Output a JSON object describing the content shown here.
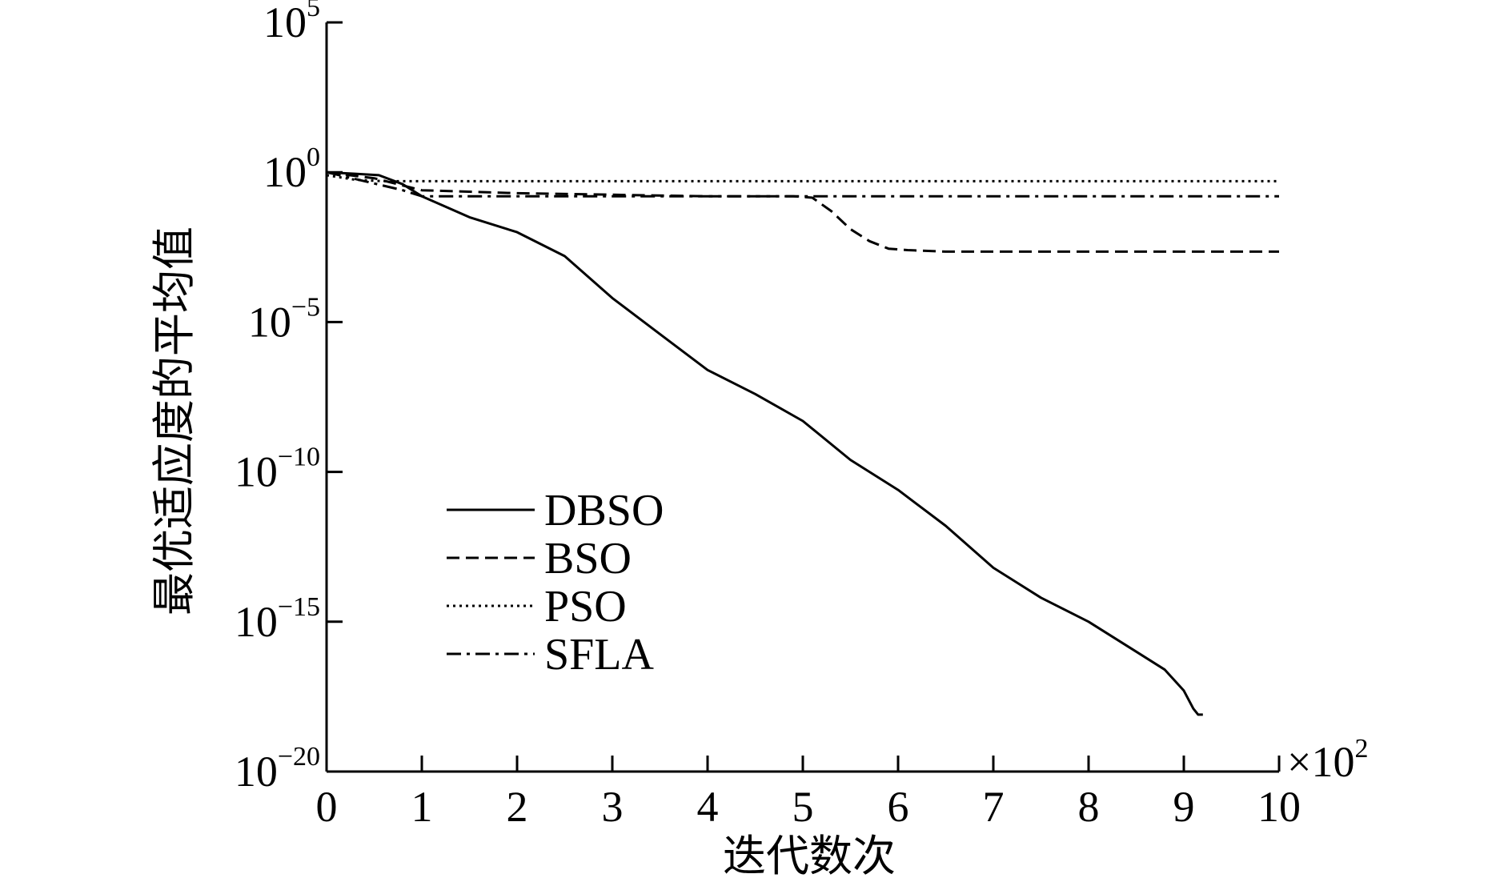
{
  "chart_data": {
    "type": "line",
    "title": "",
    "xlabel": "迭代数次",
    "ylabel": "最优适应度的平均值",
    "x_multiplier": {
      "base": "×10",
      "exp": "2"
    },
    "x_ticks": [
      "0",
      "1",
      "2",
      "3",
      "4",
      "5",
      "6",
      "7",
      "8",
      "9",
      "10"
    ],
    "y_ticks": [
      {
        "base": "10",
        "exp": "5",
        "value": 5
      },
      {
        "base": "10",
        "exp": "0",
        "value": 0
      },
      {
        "base": "10",
        "exp": "−5",
        "value": -5
      },
      {
        "base": "10",
        "exp": "−10",
        "value": -10
      },
      {
        "base": "10",
        "exp": "−15",
        "value": -15
      },
      {
        "base": "10",
        "exp": "−20",
        "value": -20
      }
    ],
    "xlim": [
      0,
      10
    ],
    "ylim_log10": [
      -20,
      5
    ],
    "y_scale": "log",
    "legend_position": "lower-left",
    "grid": false,
    "series": [
      {
        "name": "DBSO",
        "style": "solid",
        "x": [
          0,
          0.3,
          0.55,
          0.8,
          1.0,
          1.5,
          2.0,
          2.5,
          3.0,
          3.5,
          4.0,
          4.5,
          5.0,
          5.5,
          6.0,
          6.5,
          7.0,
          7.5,
          8.0,
          8.5,
          8.8,
          9.0,
          9.1,
          9.15,
          9.2
        ],
        "log10_y": [
          0.0,
          -0.05,
          -0.1,
          -0.4,
          -0.8,
          -1.5,
          -2.0,
          -2.8,
          -4.2,
          -5.4,
          -6.6,
          -7.4,
          -8.3,
          -9.6,
          -10.6,
          -11.8,
          -13.2,
          -14.2,
          -15.0,
          -16.0,
          -16.6,
          -17.3,
          -17.9,
          -18.1,
          -18.1
        ]
      },
      {
        "name": "BSO",
        "style": "dashed",
        "x": [
          0,
          0.5,
          1.0,
          2.0,
          3.0,
          4.0,
          4.9,
          5.1,
          5.3,
          5.5,
          5.7,
          5.9,
          6.1,
          6.5,
          7.0,
          8.0,
          9.0,
          10.0
        ],
        "log10_y": [
          0.0,
          -0.2,
          -0.6,
          -0.7,
          -0.75,
          -0.8,
          -0.8,
          -0.85,
          -1.3,
          -1.9,
          -2.3,
          -2.55,
          -2.6,
          -2.65,
          -2.65,
          -2.65,
          -2.65,
          -2.65
        ]
      },
      {
        "name": "PSO",
        "style": "dotted",
        "x": [
          0,
          0.3,
          0.6,
          1.0,
          2.0,
          4.0,
          6.0,
          8.0,
          10.0
        ],
        "log10_y": [
          -0.1,
          -0.25,
          -0.3,
          -0.3,
          -0.3,
          -0.3,
          -0.3,
          -0.3,
          -0.3
        ]
      },
      {
        "name": "SFLA",
        "style": "dashdot",
        "x": [
          0,
          0.4,
          0.8,
          1.0,
          2.0,
          4.0,
          6.0,
          8.0,
          10.0
        ],
        "log10_y": [
          0.0,
          -0.3,
          -0.6,
          -0.8,
          -0.8,
          -0.8,
          -0.8,
          -0.8,
          -0.8
        ]
      }
    ]
  }
}
